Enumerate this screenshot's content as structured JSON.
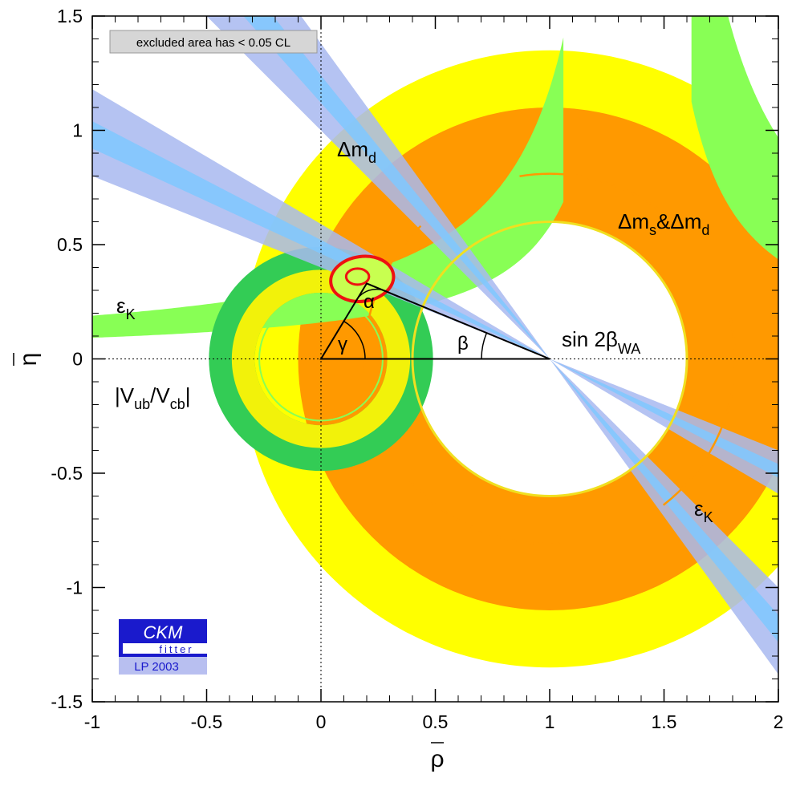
{
  "chart_data": {
    "type": "contour",
    "xlabel": "ρ",
    "ylabel": "η",
    "xlim": [
      -1,
      2
    ],
    "ylim": [
      -1.5,
      1.5
    ],
    "x_ticks": [
      -1,
      -0.5,
      0,
      0.5,
      1,
      1.5,
      2
    ],
    "y_ticks": [
      -1.5,
      -1,
      -0.5,
      0,
      0.5,
      1,
      1.5
    ],
    "x_tick_labels": [
      "-1",
      "-0.5",
      "0",
      "0.5",
      "1",
      "1.5",
      "2"
    ],
    "y_tick_labels": [
      "-1.5",
      "-1",
      "-0.5",
      "0",
      "0.5",
      "1",
      "1.5"
    ],
    "legend_note": "excluded area has < 0.05 CL",
    "logo": {
      "top": "CKM",
      "middle": "fitter",
      "bottom": "LP 2003"
    },
    "unitarity_triangle": {
      "vertices": [
        [
          0,
          0
        ],
        [
          1,
          0
        ],
        [
          0.2,
          0.33
        ]
      ],
      "angle_labels": [
        "α",
        "β",
        "γ"
      ]
    },
    "constraints": [
      {
        "name": "Δm_d",
        "shape": "annulus",
        "center": [
          1,
          0
        ],
        "radius_range": [
          0.6,
          1.35
        ],
        "color": "#ffff00"
      },
      {
        "name": "Δm_s & Δm_d",
        "shape": "annulus",
        "center": [
          1,
          0
        ],
        "radius_range": [
          0.6,
          1.1
        ],
        "color": "#ff9900"
      },
      {
        "name": "|V_ub/V_cb|",
        "shape": "annulus",
        "center": [
          0,
          0
        ],
        "radius_range": [
          0.29,
          0.49
        ],
        "color": "#33cc55",
        "inner_band": [
          0.29,
          0.39
        ]
      },
      {
        "name": "ε_K",
        "shape": "hyperbolic band",
        "color": "#88ff55"
      },
      {
        "name": "sin 2β_WA",
        "shape": "wedge through (1,0)",
        "slopes": [
          -0.4,
          -0.46,
          -0.52,
          -0.59,
          -1.0,
          -1.12,
          -1.24,
          -1.38
        ],
        "color": "#7fc8ff"
      }
    ],
    "fit_result": {
      "name": "CKM fit",
      "center": [
        0.18,
        0.35
      ],
      "color": "#ee1111"
    },
    "labels": {
      "dmd": "Δm",
      "dmd_sub": "d",
      "dms": "Δm",
      "dms_sub": "s",
      "amp": "&",
      "dmd2": "Δm",
      "dmd2_sub": "d",
      "sin2b": "sin 2β",
      "sin2b_sub": "WA",
      "eps": "ε",
      "eps_sub": "K",
      "vub": "|V",
      "vub_sub1": "ub",
      "vub_mid": "/V",
      "vub_sub2": "cb",
      "vub_end": "|",
      "alpha": "α",
      "beta": "β",
      "gamma": "γ"
    }
  }
}
